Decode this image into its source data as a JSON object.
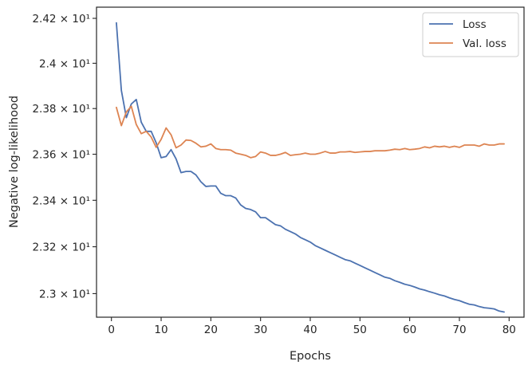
{
  "chart_data": {
    "type": "line",
    "xlabel": "Epochs",
    "ylabel": "Negative log-likelihood",
    "xlim": [
      -3,
      83
    ],
    "ylim": [
      22.9,
      24.25
    ],
    "y_scale": "log",
    "grid": false,
    "legend_position": "top-right",
    "x_ticks": [
      0,
      10,
      20,
      30,
      40,
      50,
      60,
      70,
      80
    ],
    "x_tick_labels": [
      "0",
      "10",
      "20",
      "30",
      "40",
      "50",
      "60",
      "70",
      "80"
    ],
    "y_ticks": [
      {
        "value": 23.0,
        "label": "2.3 × 10¹"
      },
      {
        "value": 23.2,
        "label": "2.32 × 10¹"
      },
      {
        "value": 23.4,
        "label": "2.34 × 10¹"
      },
      {
        "value": 23.6,
        "label": "2.36 × 10¹"
      },
      {
        "value": 23.8,
        "label": "2.38 × 10¹"
      },
      {
        "value": 24.0,
        "label": "2.4 × 10¹"
      },
      {
        "value": 24.2,
        "label": "2.42 × 10¹"
      }
    ],
    "x": [
      1,
      2,
      3,
      4,
      5,
      6,
      7,
      8,
      9,
      10,
      11,
      12,
      13,
      14,
      15,
      16,
      17,
      18,
      19,
      20,
      21,
      22,
      23,
      24,
      25,
      26,
      27,
      28,
      29,
      30,
      31,
      32,
      33,
      34,
      35,
      36,
      37,
      38,
      39,
      40,
      41,
      42,
      43,
      44,
      45,
      46,
      47,
      48,
      49,
      50,
      51,
      52,
      53,
      54,
      55,
      56,
      57,
      58,
      59,
      60,
      61,
      62,
      63,
      64,
      65,
      66,
      67,
      68,
      69,
      70,
      71,
      72,
      73,
      74,
      75,
      76,
      77,
      78,
      79
    ],
    "series": [
      {
        "name": "Loss",
        "color": "#4c72b0",
        "values": [
          24.18,
          23.88,
          23.76,
          23.82,
          23.84,
          23.74,
          23.7,
          23.7,
          23.65,
          23.585,
          23.59,
          23.62,
          23.58,
          23.52,
          23.525,
          23.525,
          23.51,
          23.48,
          23.46,
          23.462,
          23.462,
          23.43,
          23.42,
          23.42,
          23.41,
          23.38,
          23.365,
          23.36,
          23.35,
          23.325,
          23.325,
          23.31,
          23.295,
          23.29,
          23.275,
          23.265,
          23.255,
          23.24,
          23.23,
          23.22,
          23.205,
          23.195,
          23.185,
          23.175,
          23.165,
          23.155,
          23.145,
          23.14,
          23.13,
          23.12,
          23.11,
          23.1,
          23.09,
          23.08,
          23.07,
          23.065,
          23.055,
          23.048,
          23.04,
          23.035,
          23.028,
          23.02,
          23.015,
          23.008,
          23.002,
          22.995,
          22.99,
          22.982,
          22.975,
          22.97,
          22.962,
          22.955,
          22.952,
          22.945,
          22.94,
          22.938,
          22.935,
          22.926,
          22.922
        ]
      },
      {
        "name": "Val. loss",
        "color": "#dd8452",
        "values": [
          23.805,
          23.725,
          23.785,
          23.81,
          23.73,
          23.69,
          23.7,
          23.675,
          23.63,
          23.665,
          23.715,
          23.685,
          23.628,
          23.64,
          23.662,
          23.66,
          23.648,
          23.632,
          23.635,
          23.645,
          23.625,
          23.62,
          23.62,
          23.618,
          23.605,
          23.6,
          23.595,
          23.585,
          23.59,
          23.61,
          23.605,
          23.595,
          23.595,
          23.6,
          23.608,
          23.595,
          23.598,
          23.6,
          23.605,
          23.6,
          23.6,
          23.605,
          23.612,
          23.605,
          23.605,
          23.61,
          23.61,
          23.612,
          23.608,
          23.61,
          23.612,
          23.612,
          23.615,
          23.615,
          23.615,
          23.618,
          23.622,
          23.62,
          23.625,
          23.62,
          23.622,
          23.625,
          23.632,
          23.628,
          23.635,
          23.632,
          23.635,
          23.63,
          23.635,
          23.63,
          23.64,
          23.64,
          23.64,
          23.635,
          23.645,
          23.64,
          23.64,
          23.645,
          23.645
        ]
      }
    ]
  }
}
